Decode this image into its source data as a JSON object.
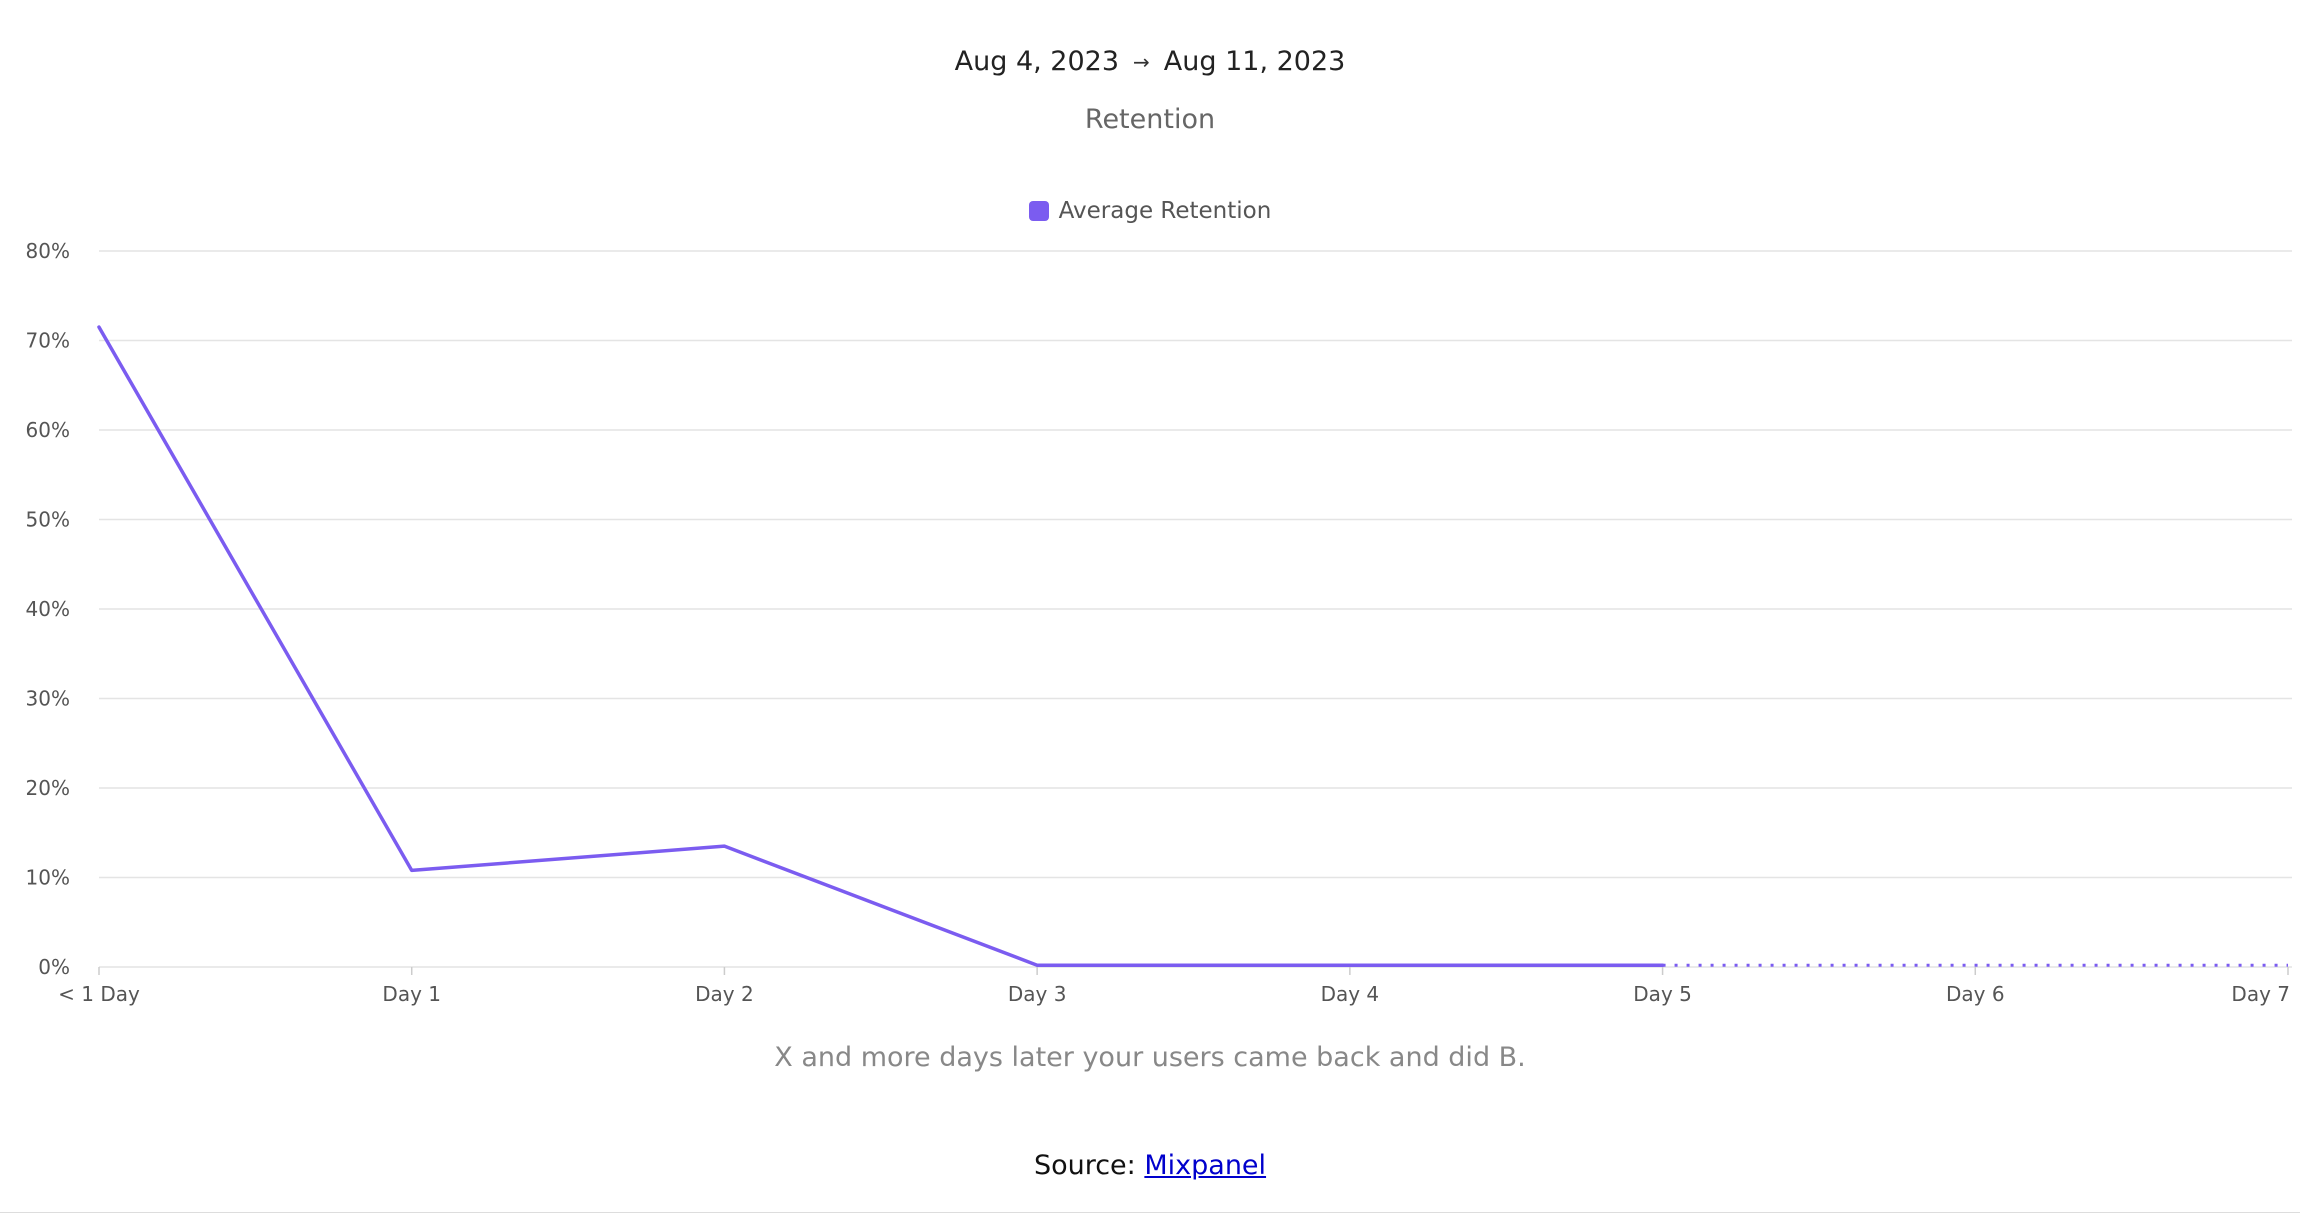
{
  "header": {
    "date_start": "Aug 4, 2023",
    "arrow": "→",
    "date_end": "Aug 11, 2023"
  },
  "chart_data": {
    "type": "line",
    "title": "Retention",
    "categories": [
      "< 1 Day",
      "Day 1",
      "Day 2",
      "Day 3",
      "Day 4",
      "Day 5",
      "Day 6",
      "Day 7"
    ],
    "series": [
      {
        "name": "Average Retention",
        "color": "#7b5cf0",
        "values": [
          71.5,
          10.8,
          13.5,
          0.2,
          0.2,
          0.2,
          0.2,
          0.2
        ],
        "projected_from_index": 5
      }
    ],
    "yticks": [
      "0%",
      "10%",
      "20%",
      "30%",
      "40%",
      "50%",
      "60%",
      "70%",
      "80%"
    ],
    "ylim": [
      0,
      80
    ],
    "grid": true,
    "legend_position": "top-center"
  },
  "caption": "X and more days later your users came back and did B.",
  "source": {
    "prefix": "Source: ",
    "link_text": "Mixpanel"
  }
}
